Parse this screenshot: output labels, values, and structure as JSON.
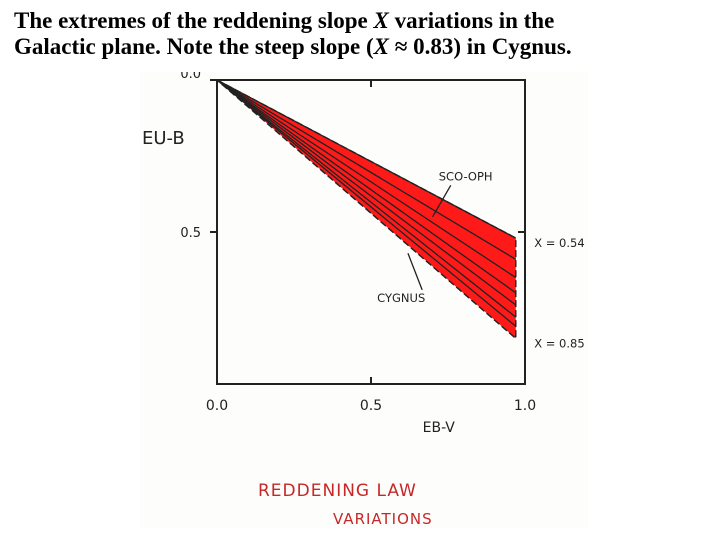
{
  "slide": {
    "title_part1": "The extremes of the reddening slope ",
    "title_var": "X",
    "title_part2": " variations in the",
    "title_line2_part1": "Galactic plane. Note the steep slope (",
    "title_line2_var": "X",
    "title_line2_part2": " ≈ 0.83) in Cygnus."
  },
  "colors": {
    "fan_fill": "#ff1a1a",
    "ink": "#222222",
    "annotation": "#c62828"
  },
  "chart_data": {
    "type": "line",
    "title": "",
    "xlabel": "EB-V",
    "ylabel": "EU-B",
    "xlim": [
      0.0,
      1.0
    ],
    "ylim": [
      0.0,
      1.0
    ],
    "y_inverted": true,
    "x_ticks": [
      "0.0",
      "0.5",
      "1.0"
    ],
    "y_ticks": [
      "0.0",
      "0.5"
    ],
    "series": [
      {
        "name": "",
        "x": [
          0.0,
          0.97
        ],
        "y": [
          0.0,
          0.52
        ]
      },
      {
        "name": "",
        "x": [
          0.0,
          0.97
        ],
        "y": [
          0.0,
          0.59
        ]
      },
      {
        "name": "",
        "x": [
          0.0,
          0.97
        ],
        "y": [
          0.0,
          0.65
        ]
      },
      {
        "name": "",
        "x": [
          0.0,
          0.97
        ],
        "y": [
          0.0,
          0.7
        ]
      },
      {
        "name": "",
        "x": [
          0.0,
          0.97
        ],
        "y": [
          0.0,
          0.74
        ]
      },
      {
        "name": "",
        "x": [
          0.0,
          0.97
        ],
        "y": [
          0.0,
          0.78
        ]
      },
      {
        "name": "",
        "x": [
          0.0,
          0.97
        ],
        "y": [
          0.0,
          0.81
        ]
      }
    ],
    "fan": {
      "x_end": 0.97,
      "y_top": 0.52,
      "y_bottom": 0.85
    },
    "annotations": [
      {
        "text": "SCO-OPH",
        "x": 0.72,
        "y": 0.33,
        "points_to": [
          0.7,
          0.45
        ]
      },
      {
        "text": "CYGNUS",
        "x": 0.52,
        "y": 0.73,
        "points_to": [
          0.62,
          0.57
        ]
      },
      {
        "text": "X = 0.54",
        "x": 1.03,
        "y": 0.55
      },
      {
        "text": "X = 0.85",
        "x": 1.03,
        "y": 0.88
      }
    ],
    "caption_line1": "REDDENING LAW",
    "caption_line2": "VARIATIONS"
  }
}
